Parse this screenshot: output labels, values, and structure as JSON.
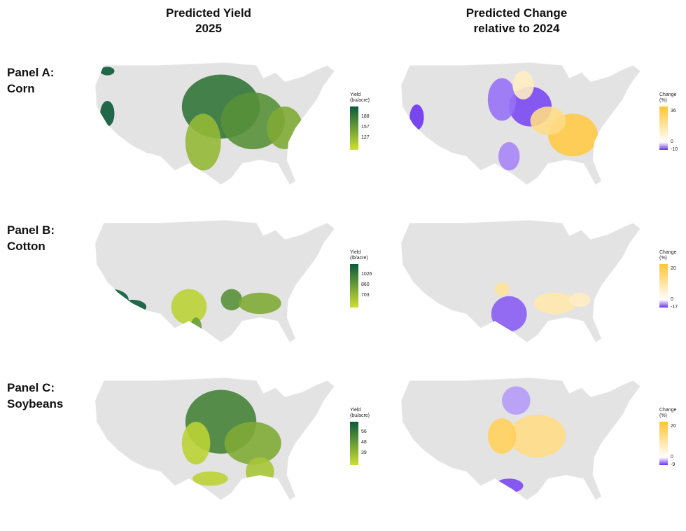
{
  "column_titles": {
    "yield_line1": "Predicted Yield",
    "yield_line2": "2025",
    "change_line1": "Predicted Change",
    "change_line2": "relative to 2024"
  },
  "panels": [
    {
      "label_line1": "Panel A:",
      "label_line2": "Corn",
      "yield_legend": {
        "title_line1": "Yield",
        "title_line2": "(bu/acre)",
        "ticks": [
          "188",
          "157",
          "127"
        ]
      },
      "change_legend": {
        "title_line1": "Change",
        "title_line2": "(%)",
        "ticks": [
          "36",
          "0",
          "-10"
        ]
      }
    },
    {
      "label_line1": "Panel B:",
      "label_line2": "Cotton",
      "yield_legend": {
        "title_line1": "Yield",
        "title_line2": "(lb/acre)",
        "ticks": [
          "1026",
          "860",
          "703"
        ]
      },
      "change_legend": {
        "title_line1": "Change",
        "title_line2": "(%)",
        "ticks": [
          "20",
          "0",
          "-17"
        ]
      }
    },
    {
      "label_line1": "Panel C:",
      "label_line2": "Soybeans",
      "yield_legend": {
        "title_line1": "Yield",
        "title_line2": "(bu/acre)",
        "ticks": [
          "56",
          "48",
          "39"
        ]
      },
      "change_legend": {
        "title_line1": "Change",
        "title_line2": "(%)",
        "ticks": [
          "20",
          "0",
          "-9"
        ]
      }
    }
  ],
  "colors": {
    "yield_high": "#0b5a3a",
    "yield_low": "#cde034",
    "change_high": "#ffc433",
    "change_zero": "#ffffff",
    "change_low": "#6a34f0",
    "no_data": "#e3e3e3"
  }
}
